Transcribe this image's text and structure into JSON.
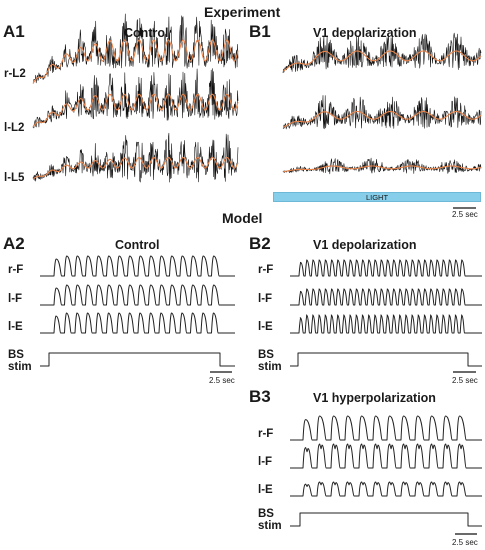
{
  "header": {
    "experiment": "Experiment",
    "model": "Model"
  },
  "panels": {
    "A1": {
      "letter": "A1",
      "condition": "Control",
      "traces": [
        "r-L2",
        "l-L2",
        "l-L5"
      ]
    },
    "B1": {
      "letter": "B1",
      "condition": "V1 depolarization",
      "light_label": "LIGHT",
      "scale": "2.5 sec"
    },
    "A2": {
      "letter": "A2",
      "condition": "Control",
      "traces": [
        "r-F",
        "l-F",
        "l-E"
      ],
      "stim": "BS stim",
      "scale": "2.5 sec"
    },
    "B2": {
      "letter": "B2",
      "condition": "V1 depolarization",
      "traces": [
        "r-F",
        "l-F",
        "l-E"
      ],
      "stim": "BS stim",
      "scale": "2.5 sec"
    },
    "B3": {
      "letter": "B3",
      "condition": "V1 hyperpolarization",
      "traces": [
        "r-F",
        "l-F",
        "l-E"
      ],
      "stim": "BS stim",
      "scale": "2.5 sec"
    }
  },
  "colors": {
    "raw_trace": "#111111",
    "filtered_trace": "#e8844a",
    "light": "#87ceea",
    "model_trace": "#222222"
  }
}
